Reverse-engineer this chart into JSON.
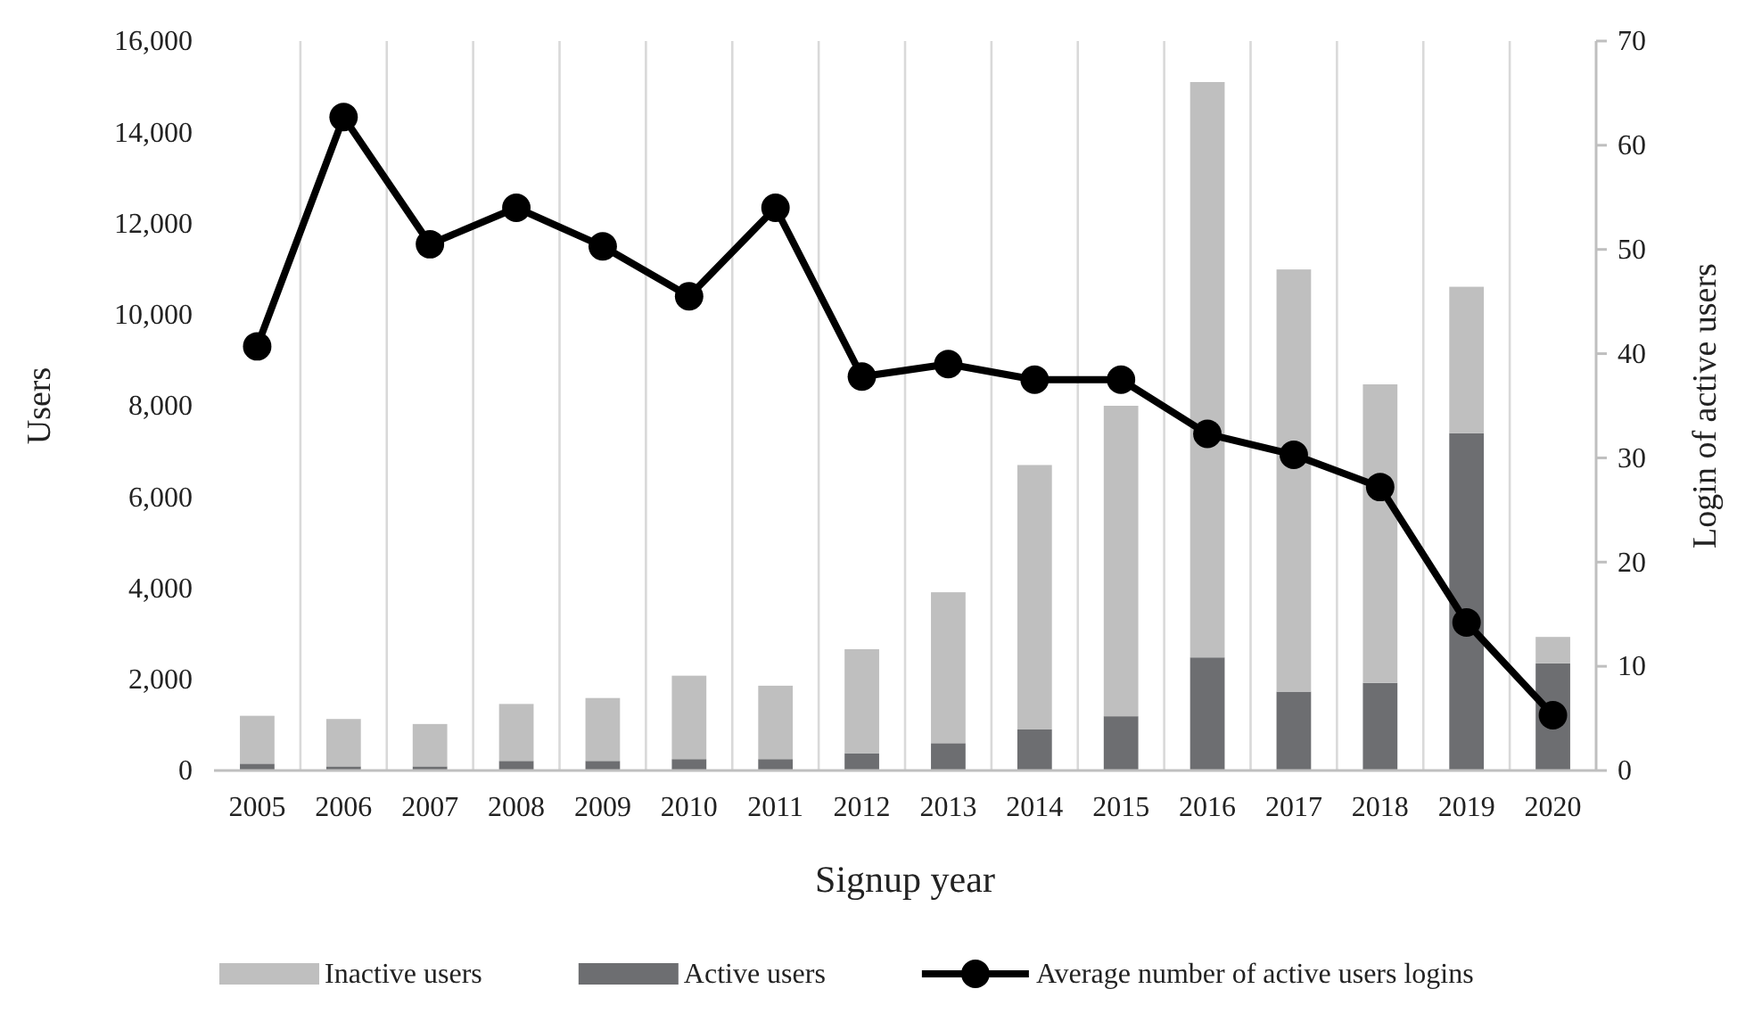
{
  "chart_data": {
    "type": "bar",
    "stacked": true,
    "xlabel": "Signup year",
    "ylabel": "Users",
    "y2label": "Login of active users",
    "categories": [
      "2005",
      "2006",
      "2007",
      "2008",
      "2009",
      "2010",
      "2011",
      "2012",
      "2013",
      "2014",
      "2015",
      "2016",
      "2017",
      "2018",
      "2019",
      "2020"
    ],
    "series": [
      {
        "name": "Active users",
        "color": "#6d6e71",
        "values": [
          150,
          90,
          90,
          210,
          210,
          250,
          250,
          380,
          600,
          900,
          1190,
          2480,
          1730,
          1920,
          7400,
          2350
        ]
      },
      {
        "name": "Inactive users",
        "color": "#bfbfbf",
        "values": [
          1050,
          1040,
          930,
          1250,
          1380,
          1830,
          1610,
          2280,
          3310,
          5800,
          6810,
          12620,
          9260,
          6550,
          3210,
          580
        ]
      },
      {
        "name": "Average number of active users logins",
        "type": "line",
        "axis": "y2",
        "color": "#000000",
        "marker": "circle",
        "values": [
          40.7,
          62.7,
          50.5,
          54,
          50.3,
          45.5,
          54,
          37.8,
          39,
          37.5,
          37.5,
          32.3,
          30.3,
          27.2,
          14.2,
          5.3
        ]
      }
    ],
    "ylim": [
      0,
      16000
    ],
    "yticks": [
      {
        "value": 0,
        "label": "0"
      },
      {
        "value": 2000,
        "label": "2,000"
      },
      {
        "value": 4000,
        "label": "4,000"
      },
      {
        "value": 6000,
        "label": "6,000"
      },
      {
        "value": 8000,
        "label": "8,000"
      },
      {
        "value": 10000,
        "label": "10,000"
      },
      {
        "value": 12000,
        "label": "12,000"
      },
      {
        "value": 14000,
        "label": "14,000"
      },
      {
        "value": 16000,
        "label": "16,000"
      }
    ],
    "y2lim": [
      0,
      70
    ],
    "y2ticks": [
      0,
      10,
      20,
      30,
      40,
      50,
      60,
      70
    ],
    "grid": "x",
    "legend": "bottom"
  }
}
